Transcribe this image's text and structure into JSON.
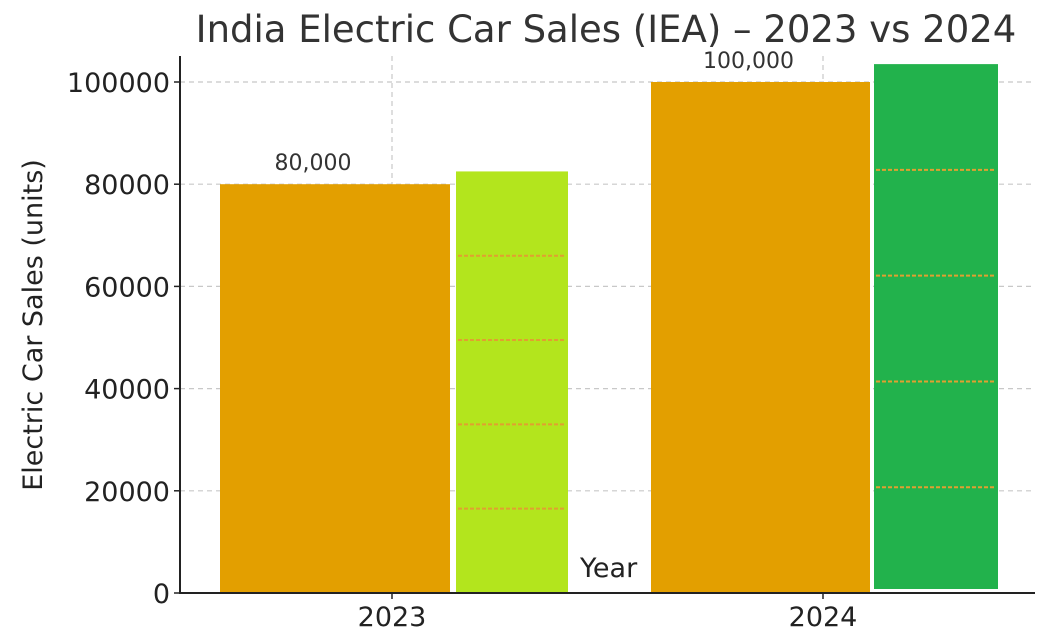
{
  "chart_data": {
    "type": "bar",
    "title": "India Electric Car Sales (IEA) – 2023 vs 2024",
    "xlabel": "Year",
    "ylabel": "Electric Car Sales (units)",
    "categories": [
      "2023",
      "2024"
    ],
    "series": [
      {
        "values": [
          80000,
          100000
        ],
        "color": "#e39f00"
      },
      {
        "values": [
          82500,
          103500
        ],
        "colors": [
          "#b3e51d",
          "#22b24c"
        ]
      }
    ],
    "data_labels": [
      "80,000",
      "100,000"
    ],
    "ylim": [
      0,
      105000
    ],
    "yticks": [
      0,
      20000,
      40000,
      60000,
      80000,
      100000
    ],
    "ytick_labels": [
      "0",
      "20000",
      "40000",
      "60000",
      "80000",
      "100000"
    ],
    "grid": true,
    "overlay_line_color": "#e0a030"
  }
}
